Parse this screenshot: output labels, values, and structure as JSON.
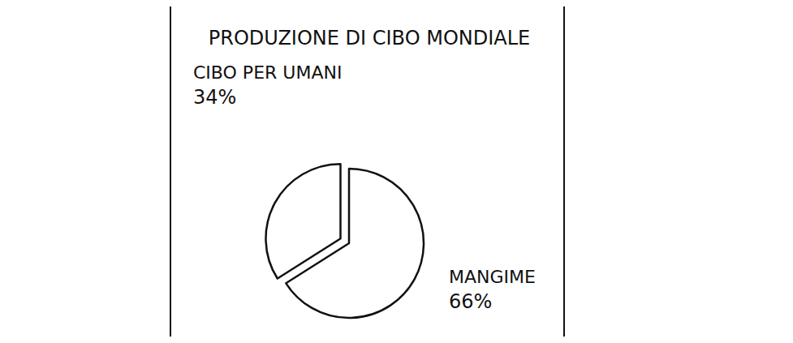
{
  "chart_data": {
    "type": "pie",
    "title": "PRODUZIONE DI CIBO MONDIALE",
    "categories": [
      "CIBO PER UMANI",
      "MANGIME"
    ],
    "values": [
      34,
      66
    ],
    "value_labels": [
      "34%",
      "66%"
    ],
    "colors": [
      "#ffffff",
      "#ffffff"
    ],
    "data_labels": true
  }
}
